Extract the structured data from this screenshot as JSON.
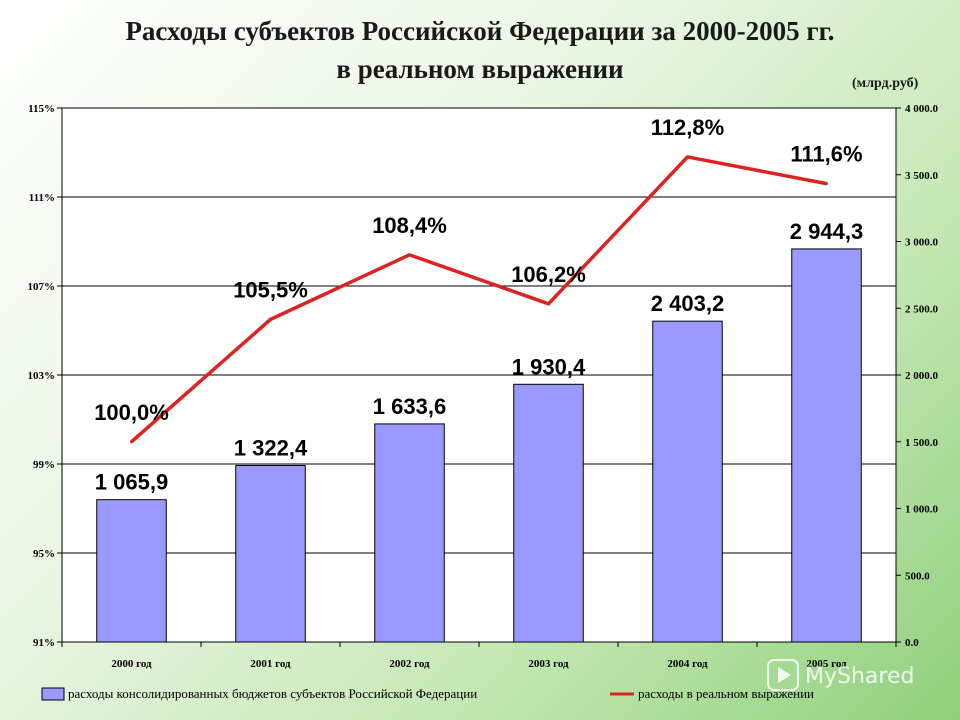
{
  "chart_data": {
    "type": "bar",
    "title": "Расходы субъектов Российской Федерации за 2000-2005 гг.",
    "subtitle": "в реальном выражении",
    "unit_note": "(млрд.руб)",
    "categories": [
      "2000 год",
      "2001 год",
      "2002 год",
      "2003 год",
      "2004 год",
      "2005 год"
    ],
    "series": [
      {
        "name": "расходы консолидированных бюджетов субъектов Российской Федерации",
        "type": "bar",
        "axis": "right",
        "color": "#9999ff",
        "values": [
          1065.9,
          1322.4,
          1633.6,
          1930.4,
          2403.2,
          2944.3
        ],
        "labels": [
          "1 065,9",
          "1 322,4",
          "1 633,6",
          "1 930,4",
          "2 403,2",
          "2 944,3"
        ]
      },
      {
        "name": "расходы в реальном выражении",
        "type": "line",
        "axis": "left",
        "color": "#dd2222",
        "values": [
          100.0,
          105.5,
          108.4,
          106.2,
          112.8,
          111.6
        ],
        "labels": [
          "100,0%",
          "105,5%",
          "108,4%",
          "106,2%",
          "112,8%",
          "111,6%"
        ]
      }
    ],
    "y_left": {
      "ylim": [
        91,
        115
      ],
      "ticks": [
        91,
        95,
        99,
        103,
        107,
        111,
        115
      ],
      "tick_labels": [
        "91%",
        "95%",
        "99%",
        "103%",
        "107%",
        "111%",
        "115%"
      ]
    },
    "y_right": {
      "ylim": [
        0,
        4000
      ],
      "ticks": [
        0,
        500,
        1000,
        1500,
        2000,
        2500,
        3000,
        3500,
        4000
      ],
      "tick_labels": [
        "0.0",
        "500.0",
        "1 000.0",
        "1 500.0",
        "2 000.0",
        "2 500.0",
        "3 000.0",
        "3 500.0",
        "4 000.0"
      ]
    },
    "grid": "horizontal",
    "legend_position": "bottom"
  },
  "watermark": {
    "text": "MyShared",
    "icon": "play-logo-icon"
  }
}
